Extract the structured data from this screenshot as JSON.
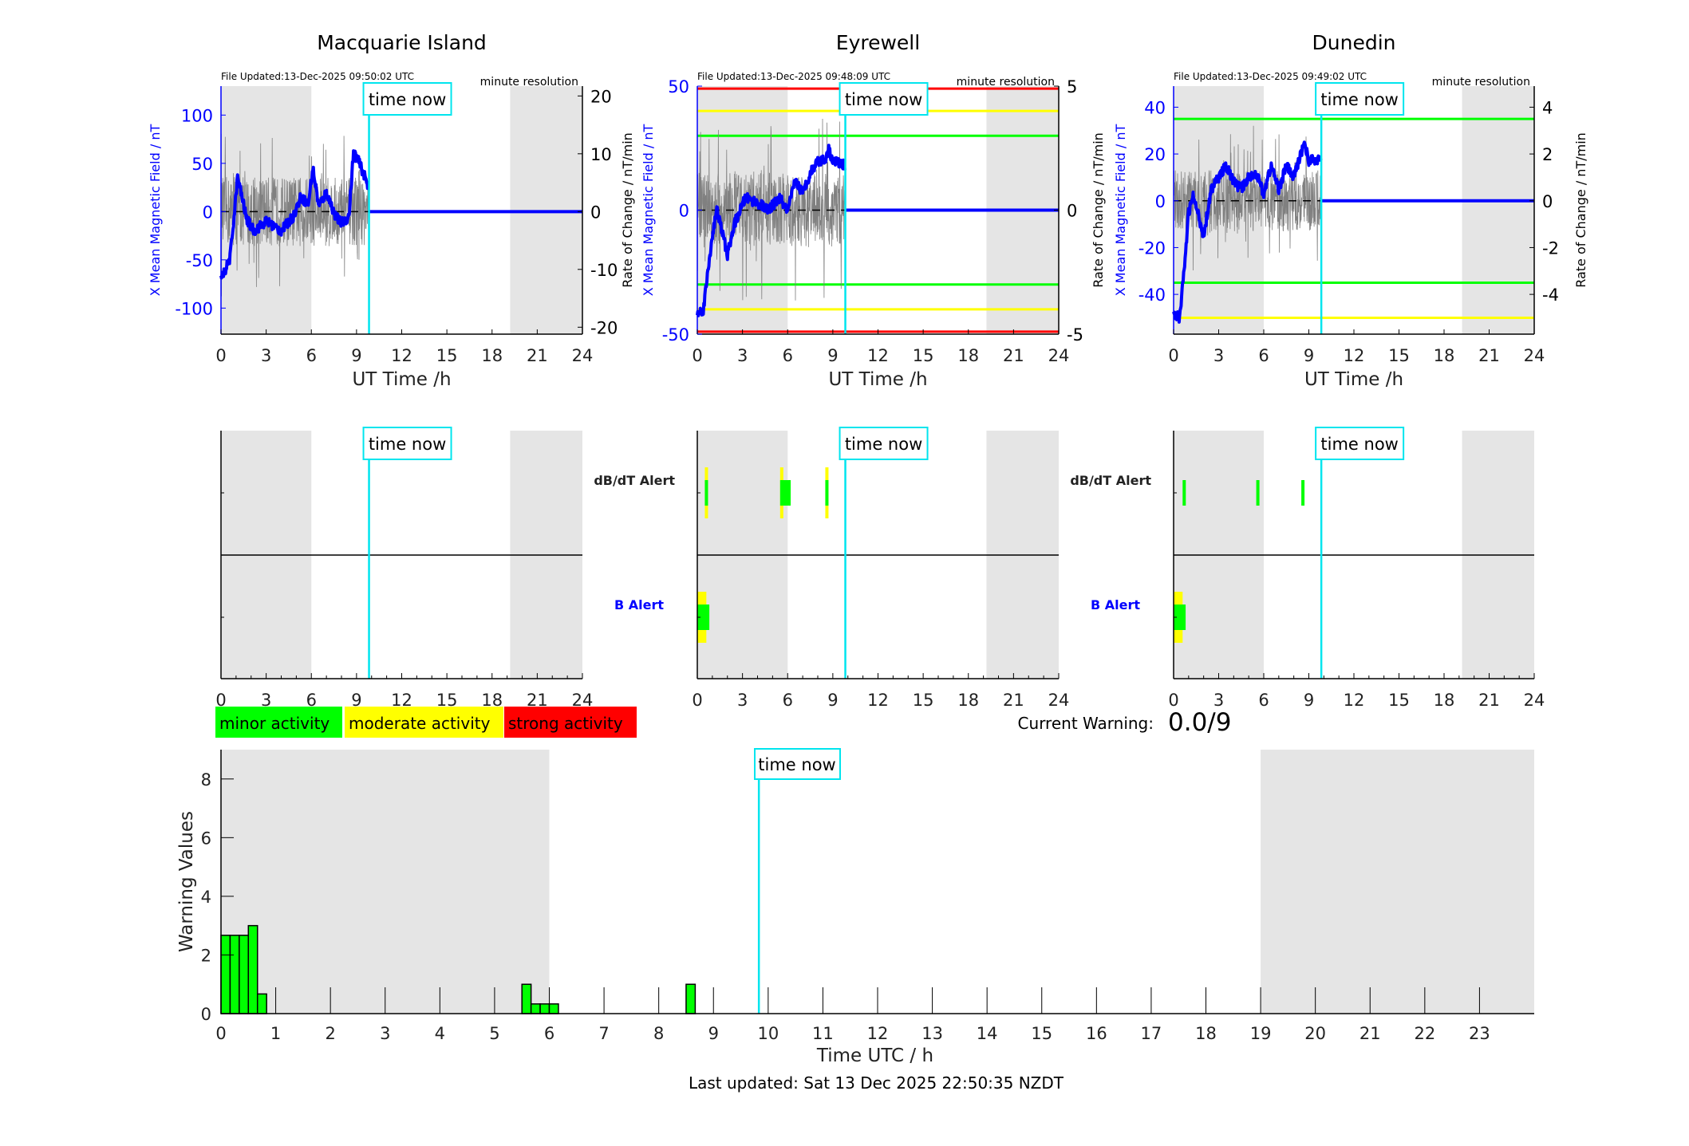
{
  "colors": {
    "field": "#0000ff",
    "rate": "#808080",
    "now": "#00e5ee",
    "night": "#e5e5e5",
    "minor": "#00ff00",
    "moderate": "#ffff00",
    "strong": "#ff0000"
  },
  "chart_data": {
    "type": "line",
    "time_now_h": 9.83,
    "time_now_label": "time now",
    "night_shading_h": [
      [
        0,
        6
      ],
      [
        19.2,
        24
      ]
    ],
    "stations": [
      {
        "title": "Macquarie Island",
        "file_updated": "File Updated:13-Dec-2025 09:50:02 UTC",
        "resolution": "minute resolution",
        "xlabel": "UT Time /h",
        "ylabel_left": "X Mean Magnetic Field / nT",
        "ylabel_right": "Rate of Change / nT/min",
        "xticks": [
          "0",
          "3",
          "6",
          "9",
          "12",
          "15",
          "18",
          "21",
          "24"
        ],
        "ylim_left": [
          -127,
          130
        ],
        "yticks_left": [
          -100,
          -50,
          0,
          50,
          100
        ],
        "ylim_right": [
          -21.2,
          21.7
        ],
        "yticks_right": [
          -20,
          -10,
          0,
          10,
          20
        ],
        "thresholds": [],
        "rate_amplitude": 6,
        "field_knots": [
          [
            0,
            -70
          ],
          [
            0.3,
            -60
          ],
          [
            0.6,
            -48
          ],
          [
            0.9,
            0
          ],
          [
            1.1,
            35
          ],
          [
            1.4,
            15
          ],
          [
            1.7,
            -8
          ],
          [
            2.2,
            -20
          ],
          [
            3,
            -10
          ],
          [
            4,
            -20
          ],
          [
            4.8,
            -5
          ],
          [
            5.3,
            15
          ],
          [
            5.8,
            8
          ],
          [
            6.1,
            45
          ],
          [
            6.5,
            5
          ],
          [
            7,
            20
          ],
          [
            7.6,
            -5
          ],
          [
            8,
            -12
          ],
          [
            8.5,
            -5
          ],
          [
            8.8,
            62
          ],
          [
            9.2,
            50
          ],
          [
            9.5,
            38
          ],
          [
            9.8,
            25
          ]
        ],
        "alerts": {
          "dbdt": [],
          "b": []
        }
      },
      {
        "title": "Eyrewell",
        "file_updated": "File Updated:13-Dec-2025 09:48:09 UTC",
        "resolution": "minute resolution",
        "xlabel": "UT Time /h",
        "ylabel_left": "X Mean Magnetic Field / nT",
        "ylabel_right": "Rate of Change / nT/min",
        "xticks": [
          "0",
          "3",
          "6",
          "9",
          "12",
          "15",
          "18",
          "21",
          "24"
        ],
        "ylim_left": [
          -50,
          50
        ],
        "yticks_left": [
          -50,
          0,
          50
        ],
        "ylim_right": [
          -5,
          5
        ],
        "yticks_right": [
          -5,
          0,
          5
        ],
        "thresholds": [
          {
            "value": 49,
            "level": "strong"
          },
          {
            "value": 40,
            "level": "moderate"
          },
          {
            "value": 30,
            "level": "minor"
          },
          {
            "value": -30,
            "level": "minor"
          },
          {
            "value": -40,
            "level": "moderate"
          },
          {
            "value": -49,
            "level": "strong"
          }
        ],
        "rate_amplitude": 1.5,
        "field_knots": [
          [
            0,
            -42
          ],
          [
            0.4,
            -40
          ],
          [
            0.6,
            -30
          ],
          [
            1,
            -10
          ],
          [
            1.3,
            0
          ],
          [
            1.7,
            -10
          ],
          [
            2,
            -18
          ],
          [
            2.5,
            -5
          ],
          [
            3.2,
            5
          ],
          [
            4,
            3
          ],
          [
            4.7,
            0
          ],
          [
            5.5,
            5
          ],
          [
            6,
            -1
          ],
          [
            6.5,
            12
          ],
          [
            7,
            7
          ],
          [
            7.5,
            15
          ],
          [
            8,
            20
          ],
          [
            8.5,
            20
          ],
          [
            8.7,
            25
          ],
          [
            9,
            20
          ],
          [
            9.8,
            18
          ]
        ],
        "alerts": {
          "dbdt": [
            {
              "start": 0.5,
              "end": 0.7,
              "level": "moderate"
            },
            {
              "start": 0.5,
              "end": 0.7,
              "level": "minor"
            },
            {
              "start": 5.5,
              "end": 5.7,
              "level": "moderate"
            },
            {
              "start": 5.5,
              "end": 6.2,
              "level": "minor"
            },
            {
              "start": 8.5,
              "end": 8.7,
              "level": "moderate"
            },
            {
              "start": 8.5,
              "end": 8.7,
              "level": "minor"
            }
          ],
          "b": [
            {
              "start": 0,
              "end": 0.6,
              "level": "moderate"
            },
            {
              "start": 0,
              "end": 0.8,
              "level": "minor"
            }
          ]
        }
      },
      {
        "title": "Dunedin",
        "file_updated": "File Updated:13-Dec-2025 09:49:02 UTC",
        "resolution": "minute resolution",
        "xlabel": "UT Time /h",
        "ylabel_left": "X Mean Magnetic Field / nT",
        "ylabel_right": "Rate of Change / nT/min",
        "xticks": [
          "0",
          "3",
          "6",
          "9",
          "12",
          "15",
          "18",
          "21",
          "24"
        ],
        "ylim_left": [
          -57,
          49
        ],
        "yticks_left": [
          -40,
          -20,
          0,
          20,
          40
        ],
        "ylim_right": [
          -5.7,
          4.9
        ],
        "yticks_right": [
          -4,
          -2,
          0,
          2,
          4
        ],
        "thresholds": [
          {
            "value": 35,
            "level": "minor"
          },
          {
            "value": -35,
            "level": "minor"
          },
          {
            "value": -50,
            "level": "moderate"
          }
        ],
        "rate_amplitude": 1.3,
        "field_knots": [
          [
            0,
            -48
          ],
          [
            0.4,
            -50
          ],
          [
            0.7,
            -30
          ],
          [
            1,
            -5
          ],
          [
            1.3,
            2
          ],
          [
            1.6,
            -5
          ],
          [
            2,
            -15
          ],
          [
            2.5,
            5
          ],
          [
            3,
            10
          ],
          [
            3.5,
            15
          ],
          [
            4,
            8
          ],
          [
            4.5,
            5
          ],
          [
            5,
            10
          ],
          [
            5.5,
            12
          ],
          [
            6,
            3
          ],
          [
            6.5,
            15
          ],
          [
            7,
            5
          ],
          [
            7.5,
            15
          ],
          [
            8,
            10
          ],
          [
            8.7,
            25
          ],
          [
            9,
            17
          ],
          [
            9.8,
            18
          ]
        ],
        "alerts": {
          "dbdt": [
            {
              "start": 0.6,
              "end": 0.8,
              "level": "minor"
            },
            {
              "start": 5.5,
              "end": 5.7,
              "level": "minor"
            },
            {
              "start": 8.5,
              "end": 8.7,
              "level": "minor"
            }
          ],
          "b": [
            {
              "start": 0,
              "end": 0.6,
              "level": "moderate"
            },
            {
              "start": 0,
              "end": 0.8,
              "level": "minor"
            }
          ]
        }
      }
    ],
    "alert_labels": {
      "dbdt": "dB/dT Alert",
      "b": "B Alert"
    },
    "legend": [
      {
        "label": "minor activity",
        "level": "minor"
      },
      {
        "label": "moderate activity",
        "level": "moderate"
      },
      {
        "label": "strong activity",
        "level": "strong"
      }
    ],
    "current_warning": {
      "label": "Current Warning:",
      "value": "0.0/9"
    },
    "warning_chart": {
      "type": "bar",
      "xlabel": "Time UTC / h",
      "ylabel": "Warning Values",
      "xlim": [
        0,
        24
      ],
      "ylim": [
        0,
        9
      ],
      "yticks": [
        0,
        2,
        4,
        6,
        8
      ],
      "xticks": [
        "0",
        "1",
        "2",
        "3",
        "4",
        "5",
        "6",
        "7",
        "8",
        "9",
        "10",
        "11",
        "12",
        "13",
        "14",
        "15",
        "16",
        "17",
        "18",
        "19",
        "20",
        "21",
        "22",
        "23"
      ],
      "night_shading_h": [
        [
          0,
          6
        ],
        [
          19,
          24
        ]
      ],
      "bin_width_h": 0.1667,
      "bars": [
        [
          0,
          2.67
        ],
        [
          0.1667,
          2.67
        ],
        [
          0.3333,
          2.67
        ],
        [
          0.5,
          3
        ],
        [
          0.6667,
          0.67
        ],
        [
          5.5,
          1
        ],
        [
          5.6667,
          0.33
        ],
        [
          5.8333,
          0.33
        ],
        [
          6,
          0.33
        ],
        [
          8.5,
          1
        ]
      ]
    }
  },
  "footer": {
    "last_updated": "Last updated: Sat 13 Dec 2025 22:50:35 NZDT"
  }
}
